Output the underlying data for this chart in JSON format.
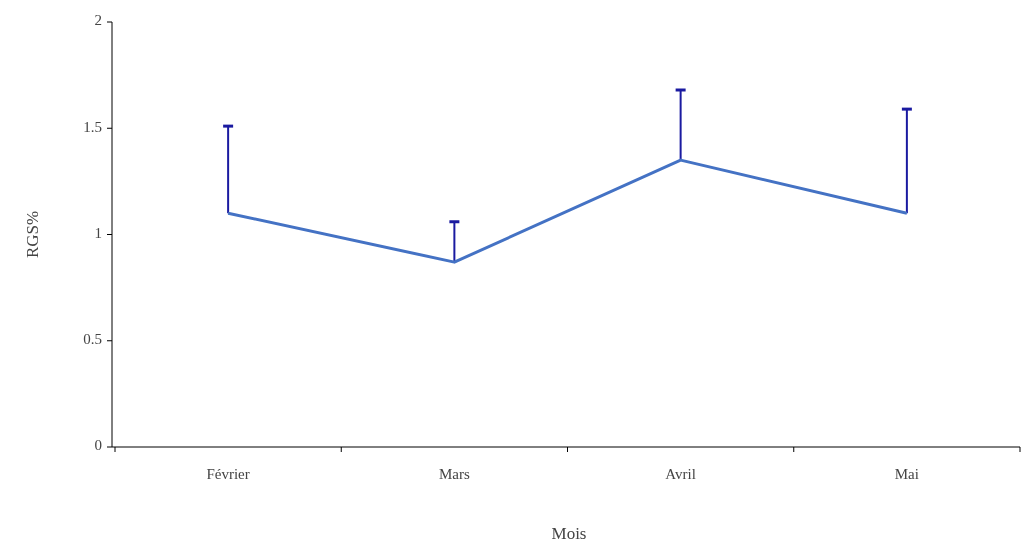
{
  "chart_data": {
    "type": "line",
    "xlabel": "Mois",
    "ylabel": "RGS%",
    "categories": [
      "Février",
      "Mars",
      "Avril",
      "Mai"
    ],
    "series": [
      {
        "color": "#4472c4",
        "values": [
          1.1,
          0.87,
          1.35,
          1.1
        ],
        "errors": [
          [
            1.1,
            1.51
          ],
          [
            0.87,
            1.06
          ],
          [
            1.35,
            1.68
          ],
          [
            1.1,
            1.59
          ]
        ]
      }
    ],
    "ylim": [
      0,
      2
    ],
    "yticks": [
      0,
      0.5,
      1,
      1.5,
      2
    ],
    "grid": false,
    "marker": "none"
  }
}
